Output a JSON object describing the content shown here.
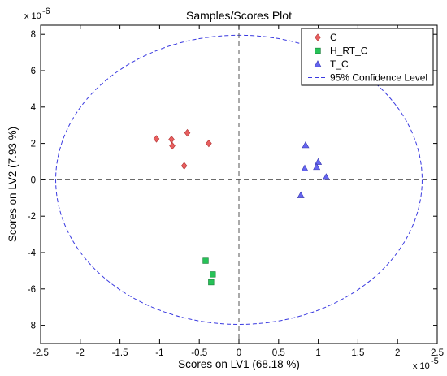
{
  "chart_data": {
    "type": "scatter",
    "title": "Samples/Scores Plot",
    "xlabel": "Scores on LV1 (68.18 %)",
    "ylabel": "Scores on LV2 (7.93 %)",
    "x_exponent_base": "x 10",
    "x_exponent_power": "-5",
    "y_exponent_base": "x 10",
    "y_exponent_power": "-6",
    "x_scale": 1e-05,
    "y_scale": 1e-06,
    "xlim": [
      -2.5,
      2.5
    ],
    "ylim": [
      -9,
      8.5
    ],
    "xticks": [
      -2.5,
      -2,
      -1.5,
      -1,
      -0.5,
      0,
      0.5,
      1,
      1.5,
      2,
      2.5
    ],
    "xtick_labels": [
      "-2.5",
      "-2",
      "-1.5",
      "-1",
      "-0.5",
      "0",
      "0.5",
      "1",
      "1.5",
      "2",
      "2.5"
    ],
    "yticks": [
      -8,
      -6,
      -4,
      -2,
      0,
      2,
      4,
      6,
      8
    ],
    "ytick_labels": [
      "-8",
      "-6",
      "-4",
      "-2",
      "0",
      "2",
      "4",
      "6",
      "8"
    ],
    "grid": false,
    "legend_position": "top-right",
    "reference_lines": {
      "x": 0,
      "y": 0,
      "color": "#555555"
    },
    "series": [
      {
        "name": "C",
        "marker": "diamond",
        "color": "#e85f5f",
        "points": [
          {
            "x": -1.04,
            "y": 2.25
          },
          {
            "x": -0.85,
            "y": 2.22
          },
          {
            "x": -0.84,
            "y": 1.87
          },
          {
            "x": -0.65,
            "y": 2.58
          },
          {
            "x": -0.69,
            "y": 0.77
          },
          {
            "x": -0.38,
            "y": 2.0
          }
        ]
      },
      {
        "name": "H_RT_C",
        "marker": "square",
        "color": "#26c257",
        "points": [
          {
            "x": -0.42,
            "y": -4.45
          },
          {
            "x": -0.33,
            "y": -5.2
          },
          {
            "x": -0.35,
            "y": -5.63
          }
        ]
      },
      {
        "name": "T_C",
        "marker": "triangle",
        "color": "#6464f0",
        "points": [
          {
            "x": 0.84,
            "y": 1.9
          },
          {
            "x": 0.83,
            "y": 0.62
          },
          {
            "x": 1.0,
            "y": 0.98
          },
          {
            "x": 0.98,
            "y": 0.7
          },
          {
            "x": 1.1,
            "y": 0.15
          },
          {
            "x": 0.78,
            "y": -0.85
          }
        ]
      }
    ],
    "confidence_ellipse": {
      "name": "95% Confidence Level",
      "center": [
        0,
        0
      ],
      "semi_axis_x": 2.31,
      "semi_axis_y": 7.95,
      "color": "#3a3ae0"
    }
  }
}
